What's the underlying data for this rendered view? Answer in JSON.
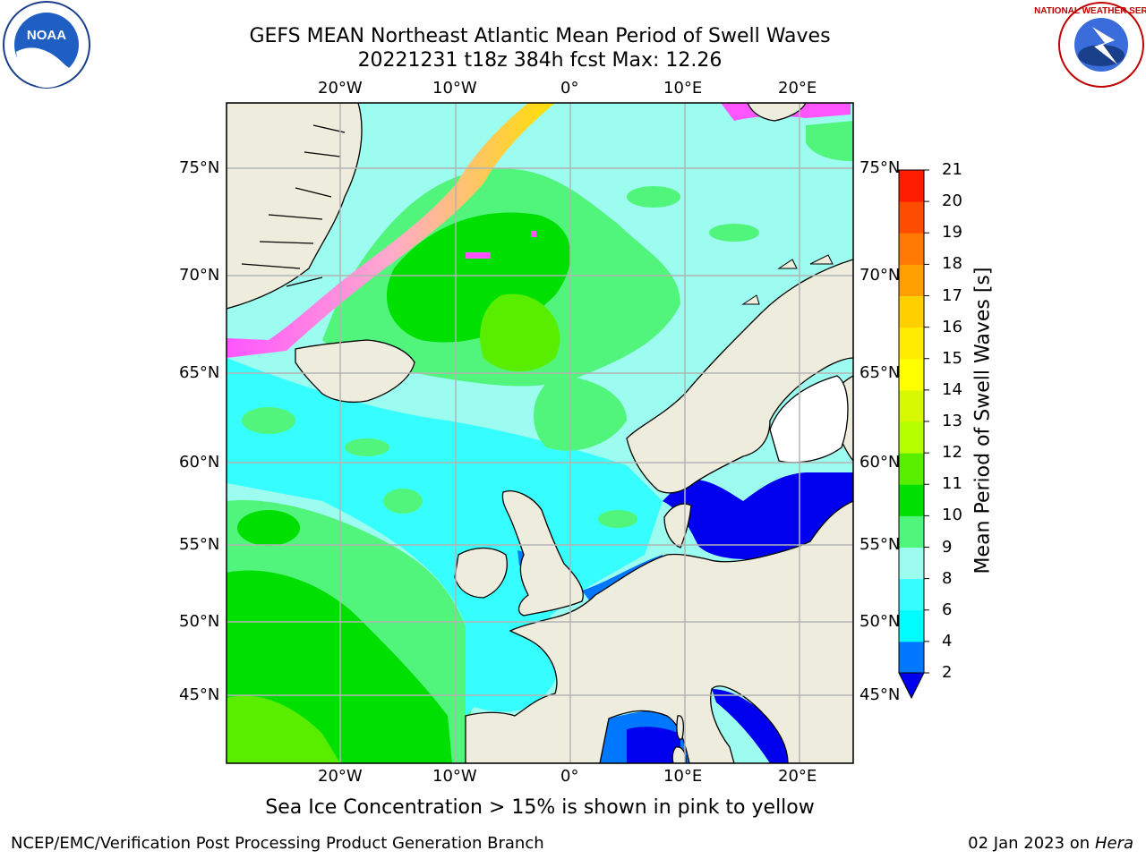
{
  "title_line1": "GEFS MEAN Northeast Atlantic Mean Period of Swell Waves",
  "title_line2": "20221231 t18z 384h fcst   Max: 12.26",
  "ice_note": "Sea Ice Concentration > 15% is shown in pink to yellow",
  "footer_left": "NCEP/EMC/Verification Post Processing Product Generation Branch",
  "footer_date": "02 Jan 2023 on",
  "footer_host": "Hera",
  "logos": {
    "noaa_text": "NOAA",
    "nws_ring": "NATIONAL WEATHER SERVICE"
  },
  "map": {
    "lon_ticks": [
      "20°W",
      "10°W",
      "0°",
      "10°E",
      "20°E"
    ],
    "lat_ticks": [
      "75°N",
      "70°N",
      "65°N",
      "60°N",
      "55°N",
      "50°N",
      "45°N"
    ],
    "extent": {
      "lon_min": -30,
      "lon_max": 25,
      "lat_min": 41,
      "lat_max": 78
    },
    "colors": {
      "land": "#eeecdc",
      "ocean_main": "#9dfcf0",
      "grid": "#b3b3b3"
    }
  },
  "colorbar": {
    "title": "Mean Period of Swell Waves [s]",
    "tick_labels": [
      "2",
      "4",
      "6",
      "8",
      "9",
      "10",
      "11",
      "12",
      "13",
      "14",
      "15",
      "16",
      "17",
      "18",
      "19",
      "20",
      "21"
    ],
    "colors": [
      "#0077ff",
      "#00fcff",
      "#36feff",
      "#9dfcf0",
      "#52f57c",
      "#00e000",
      "#59ee00",
      "#b6ff00",
      "#d6f800",
      "#ffff00",
      "#ffec00",
      "#ffd000",
      "#ffa000",
      "#ff7a00",
      "#ff4d00",
      "#ff1c00"
    ],
    "extend": "min",
    "extend_color": "#0000ee"
  }
}
